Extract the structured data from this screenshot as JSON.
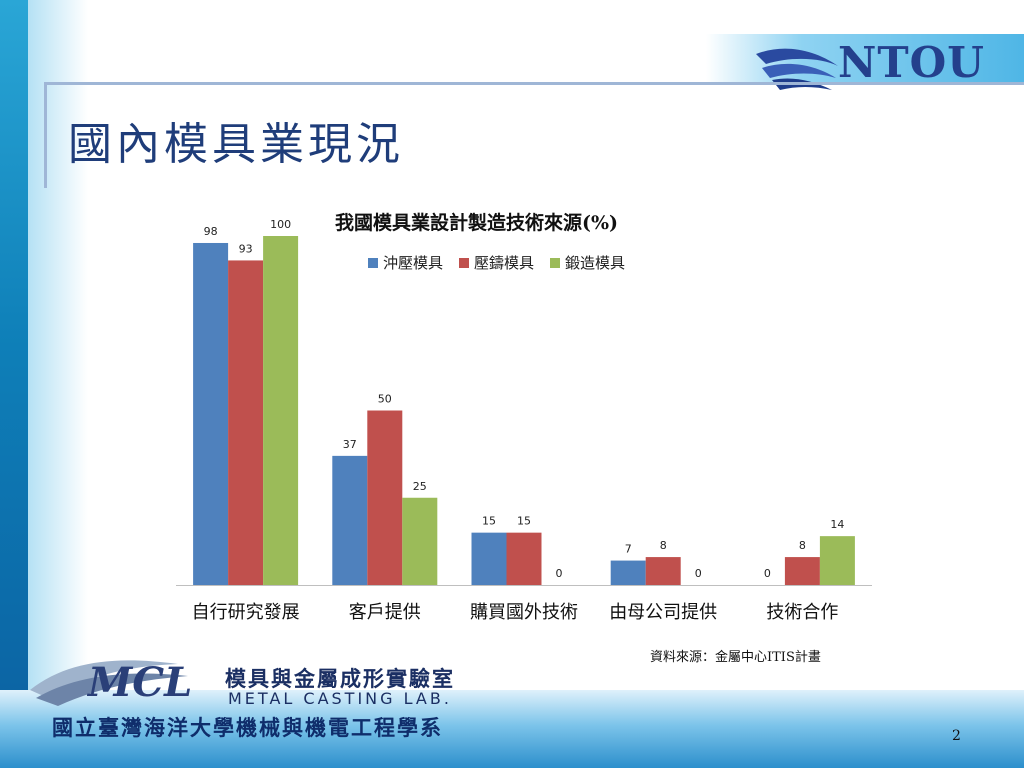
{
  "slide": {
    "title": "國內模具業現況",
    "logo_text": "NTOU",
    "source_note": "資料來源：金屬中心ITIS計畫",
    "lab_name_cn": "模具與金屬成形實驗室",
    "lab_name_en": "METAL CASTING LAB.",
    "lab_logo_text": "MCL",
    "university_name": "國立臺灣海洋大學機械與機電工程學系",
    "page_number": "2"
  },
  "colors": {
    "series_1": "#4f81bd",
    "series_2": "#c0504d",
    "series_3": "#9bbb59",
    "title": "#1f3d7a",
    "axis": "#bfbfbf"
  },
  "chart_data": {
    "type": "bar",
    "title": "我國模具業設計製造技術來源(%)",
    "categories": [
      "自行研究發展",
      "客戶提供",
      "購買國外技術",
      "由母公司提供",
      "技術合作"
    ],
    "series": [
      {
        "name": "沖壓模具",
        "values": [
          98,
          37,
          15,
          7,
          0
        ]
      },
      {
        "name": "壓鑄模具",
        "values": [
          93,
          50,
          15,
          8,
          8
        ]
      },
      {
        "name": "鍛造模具",
        "values": [
          100,
          25,
          0,
          0,
          14
        ]
      }
    ],
    "ylim": [
      0,
      100
    ],
    "grid": false,
    "legend_position": "top",
    "data_labels": true
  }
}
